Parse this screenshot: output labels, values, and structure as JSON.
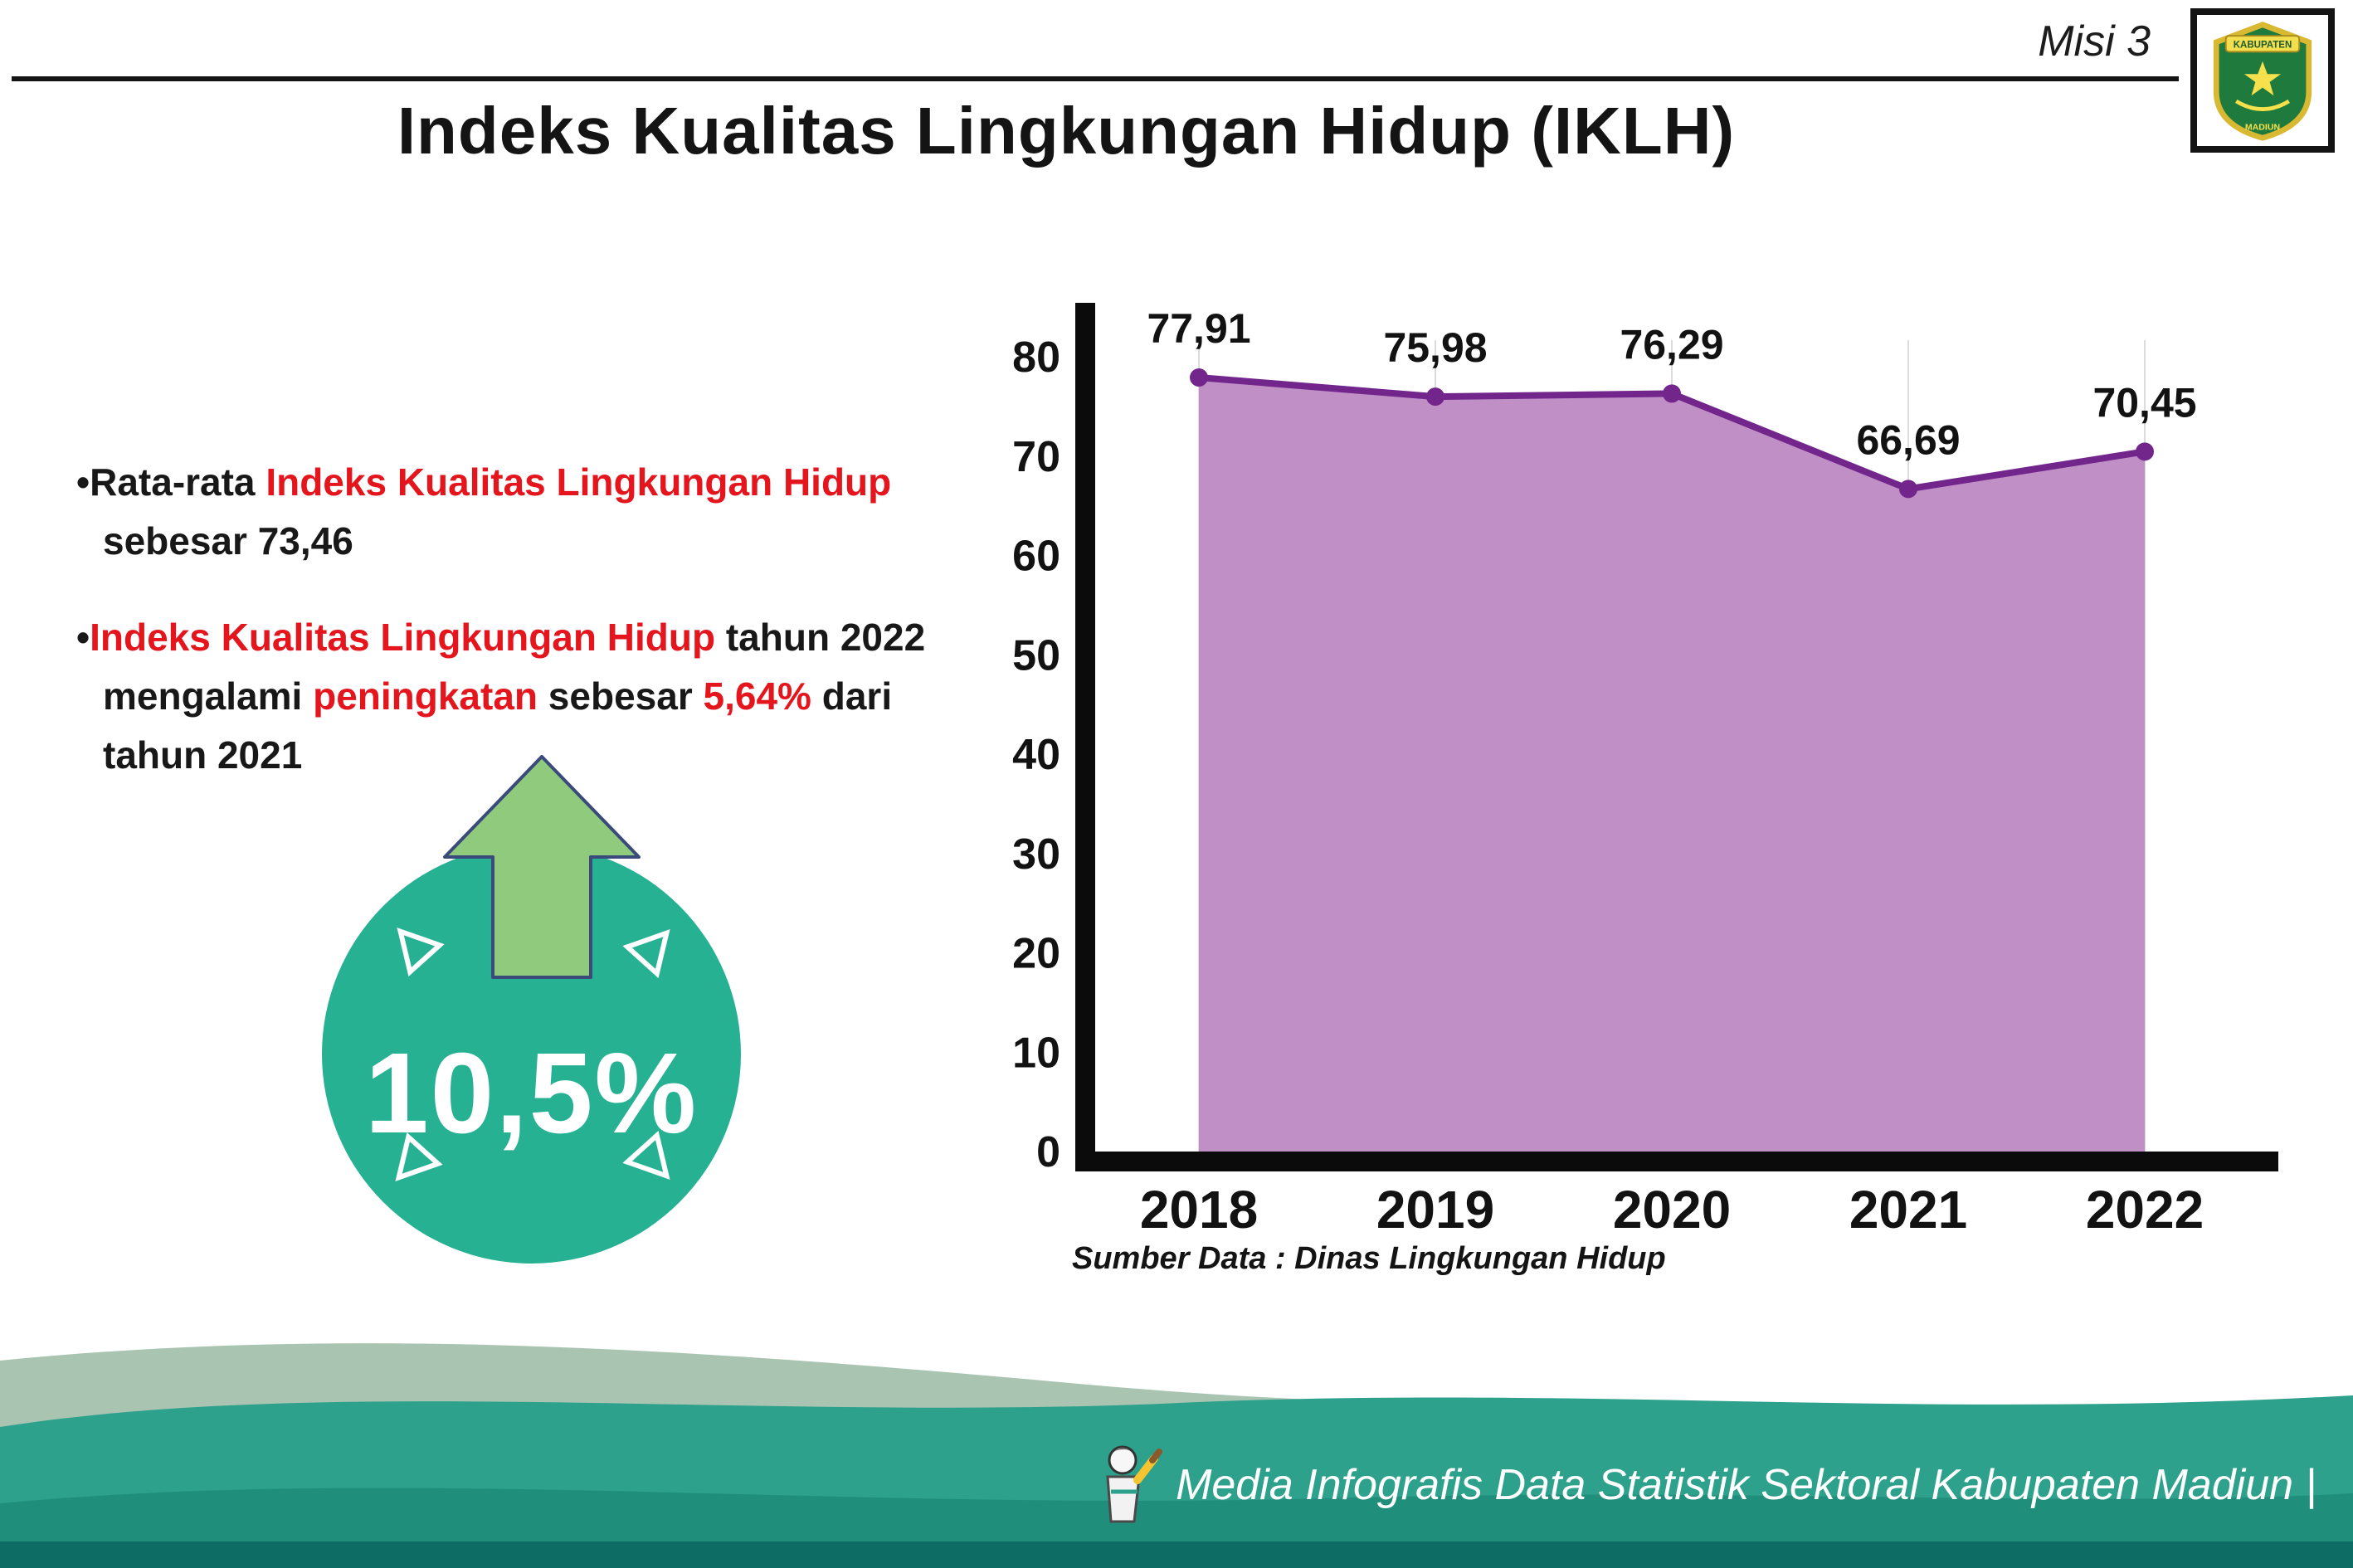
{
  "header": {
    "misi": "Misi 3",
    "title": "Indeks Kualitas Lingkungan Hidup (IKLH)",
    "logo": {
      "top_text": "KABUPATEN",
      "bottom_text": "MADIUN"
    }
  },
  "bullets": {
    "marker": "•",
    "b1": {
      "l1a": "Rata-rata ",
      "l1b": "Indeks Kualitas Lingkungan Hidup",
      "l2": "sebesar 73,46"
    },
    "b2": {
      "l1a": "Indeks Kualitas Lingkungan Hidup",
      "l1b": " tahun 2022",
      "l2a": "mengalami ",
      "l2b": "peningkatan",
      "l2c": " sebesar ",
      "l2d": "5,64%",
      "l2e": " dari",
      "l3": "tahun 2021"
    }
  },
  "badge": {
    "value": "10,5%"
  },
  "chart_data": {
    "type": "area",
    "title": "Indeks Kualitas Lingkungan Hidup (IKLH)",
    "categories": [
      "2018",
      "2019",
      "2020",
      "2021",
      "2022"
    ],
    "values": [
      77.91,
      75.98,
      76.29,
      66.69,
      70.45
    ],
    "value_labels": [
      "77,91",
      "75,98",
      "76,29",
      "66,69",
      "70,45"
    ],
    "ylim": [
      0,
      80
    ],
    "yticks": [
      0,
      10,
      20,
      30,
      40,
      50,
      60,
      70,
      80
    ],
    "grid": "vertical-light",
    "legend": "none",
    "line_color": "#72268c",
    "fill_color": "#bf8fc5",
    "axis_color": "#0b0b0b",
    "source": "Sumber Data : Dinas Lingkungan Hidup"
  },
  "footer": {
    "credit": "Media Infografis Data Statistik Sektoral Kabupaten Madiun |"
  },
  "colors": {
    "accent_red": "#e4151c",
    "badge_teal": "#26b192",
    "arrow_green": "#8fca7d",
    "wave_teal": "#2da18c",
    "wave_sage": "#a9c4b1",
    "wave_dark": "#0d6c64"
  }
}
